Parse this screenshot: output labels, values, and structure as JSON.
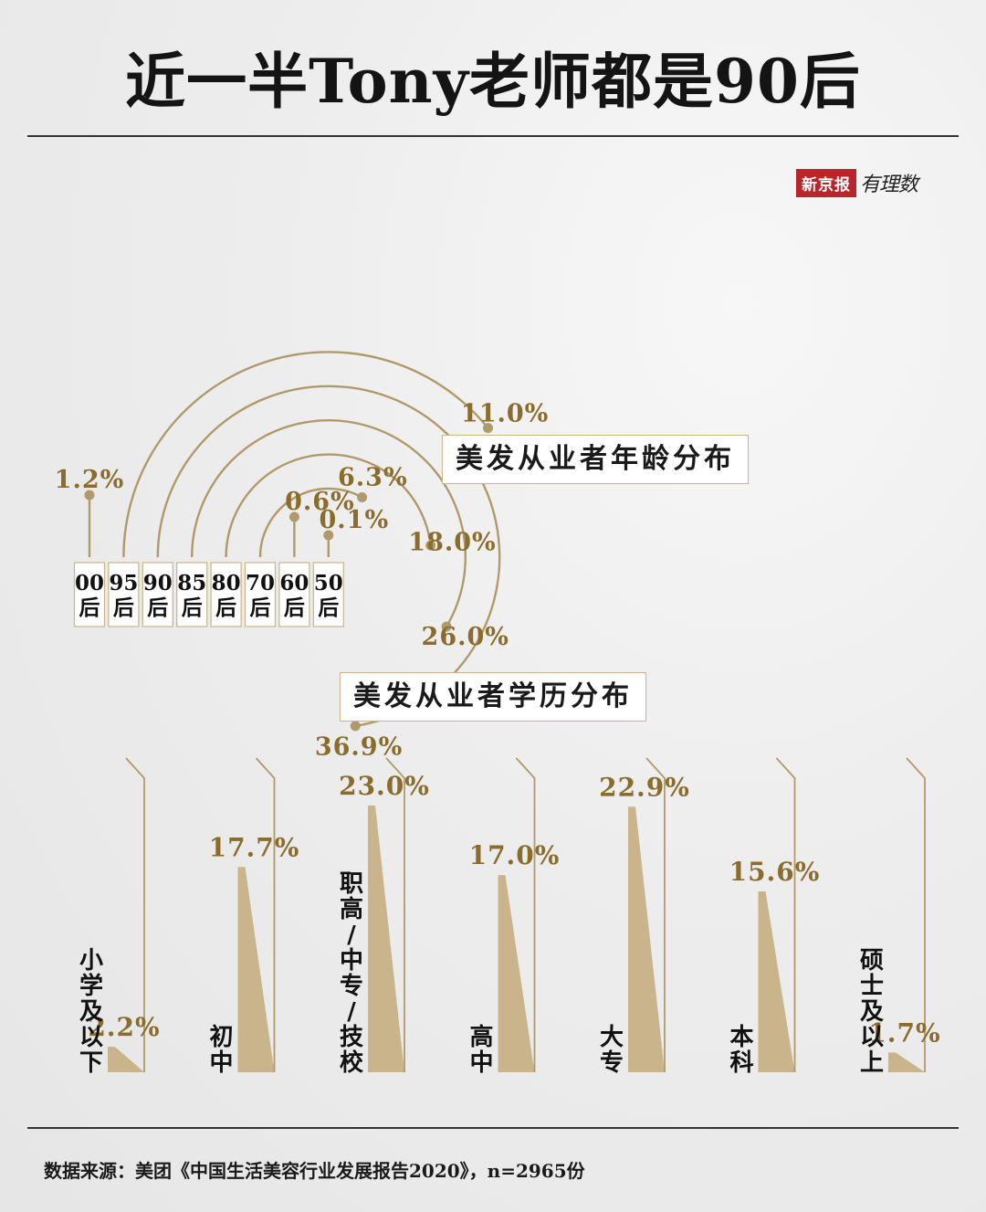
{
  "title": "近一半Tony老师都是90后",
  "logo": {
    "brand": "新京报",
    "column": "有理数"
  },
  "chart_data": [
    {
      "type": "radial-arc",
      "label": "美发从业者年龄分布",
      "categories": [
        "00后",
        "95后",
        "90后",
        "85后",
        "80后",
        "70后",
        "60后",
        "50后"
      ],
      "category_lines": [
        [
          "00",
          "后"
        ],
        [
          "95",
          "后"
        ],
        [
          "90",
          "后"
        ],
        [
          "85",
          "后"
        ],
        [
          "80",
          "后"
        ],
        [
          "70",
          "后"
        ],
        [
          "60",
          "后"
        ],
        [
          "50",
          "后"
        ]
      ],
      "values": [
        1.2,
        11.0,
        36.9,
        26.0,
        18.0,
        6.3,
        0.6,
        0.1
      ],
      "value_labels": [
        "1.2%",
        "11.0%",
        "36.9%",
        "26.0%",
        "18.0%",
        "6.3%",
        "0.6%",
        "0.1%"
      ],
      "unit": "%"
    },
    {
      "type": "bar",
      "label": "美发从业者学历分布",
      "categories": [
        "小学及以下",
        "初中",
        "职高/中专/技校",
        "高中",
        "大专",
        "本科",
        "硕士及以上"
      ],
      "values": [
        2.2,
        17.7,
        23.0,
        17.0,
        22.9,
        15.6,
        1.7
      ],
      "value_labels": [
        "2.2%",
        "17.7%",
        "23.0%",
        "17.0%",
        "22.9%",
        "15.6%",
        "1.7%"
      ],
      "unit": "%",
      "colors": {
        "bar": "#c9b48c",
        "line": "#b09a6c",
        "value_text": "#8a6d2c"
      }
    }
  ],
  "source": "数据来源：美团《中国生活美容行业发展报告2020》，n=2965份"
}
